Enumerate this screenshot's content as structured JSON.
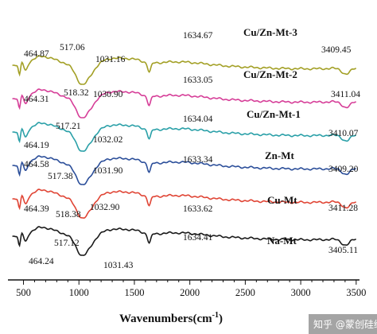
{
  "chart_data": {
    "type": "line",
    "xlabel": "Wavenumbers(cm",
    "xlabel_sup": "-1",
    "xlabel_close": ")",
    "xlim": [
      360,
      3530
    ],
    "xticks": [
      "500",
      "1000",
      "1500",
      "2000",
      "2500",
      "3000",
      "3500"
    ],
    "series": [
      {
        "name": "Cu/Zn-Mt-3",
        "color": "#a3a026",
        "offset": 5,
        "annotations": [
          "464.87",
          "517.06",
          "1031.16",
          "1634.67",
          "3409.45"
        ]
      },
      {
        "name": "Cu/Zn-Mt-2",
        "color": "#d63e98",
        "offset": 4,
        "annotations": [
          "464.31",
          "518.32",
          "1030.90",
          "1633.05",
          "3411.04"
        ]
      },
      {
        "name": "Cu/Zn-Mt-1",
        "color": "#2aa0a8",
        "offset": 3,
        "annotations": [
          "464.19",
          "517.21",
          "1032.02",
          "1634.04",
          "3410.07"
        ]
      },
      {
        "name": "Zn-Mt",
        "color": "#2c4f9a",
        "offset": 2,
        "annotations": [
          "464.58",
          "517.38",
          "1031.90",
          "1633.34",
          "3409.20"
        ]
      },
      {
        "name": "Cu-Mt",
        "color": "#e04535",
        "offset": 1,
        "annotations": [
          "464.39",
          "518.38",
          "1032.90",
          "1633.62",
          "3411.28"
        ]
      },
      {
        "name": "Na-Mt",
        "color": "#1a1a1a",
        "offset": 0,
        "annotations": [
          "464.24",
          "517.12",
          "1031.43",
          "1634.41",
          "3405.11"
        ]
      }
    ]
  },
  "watermark": "知乎 @蒙创硅纹"
}
